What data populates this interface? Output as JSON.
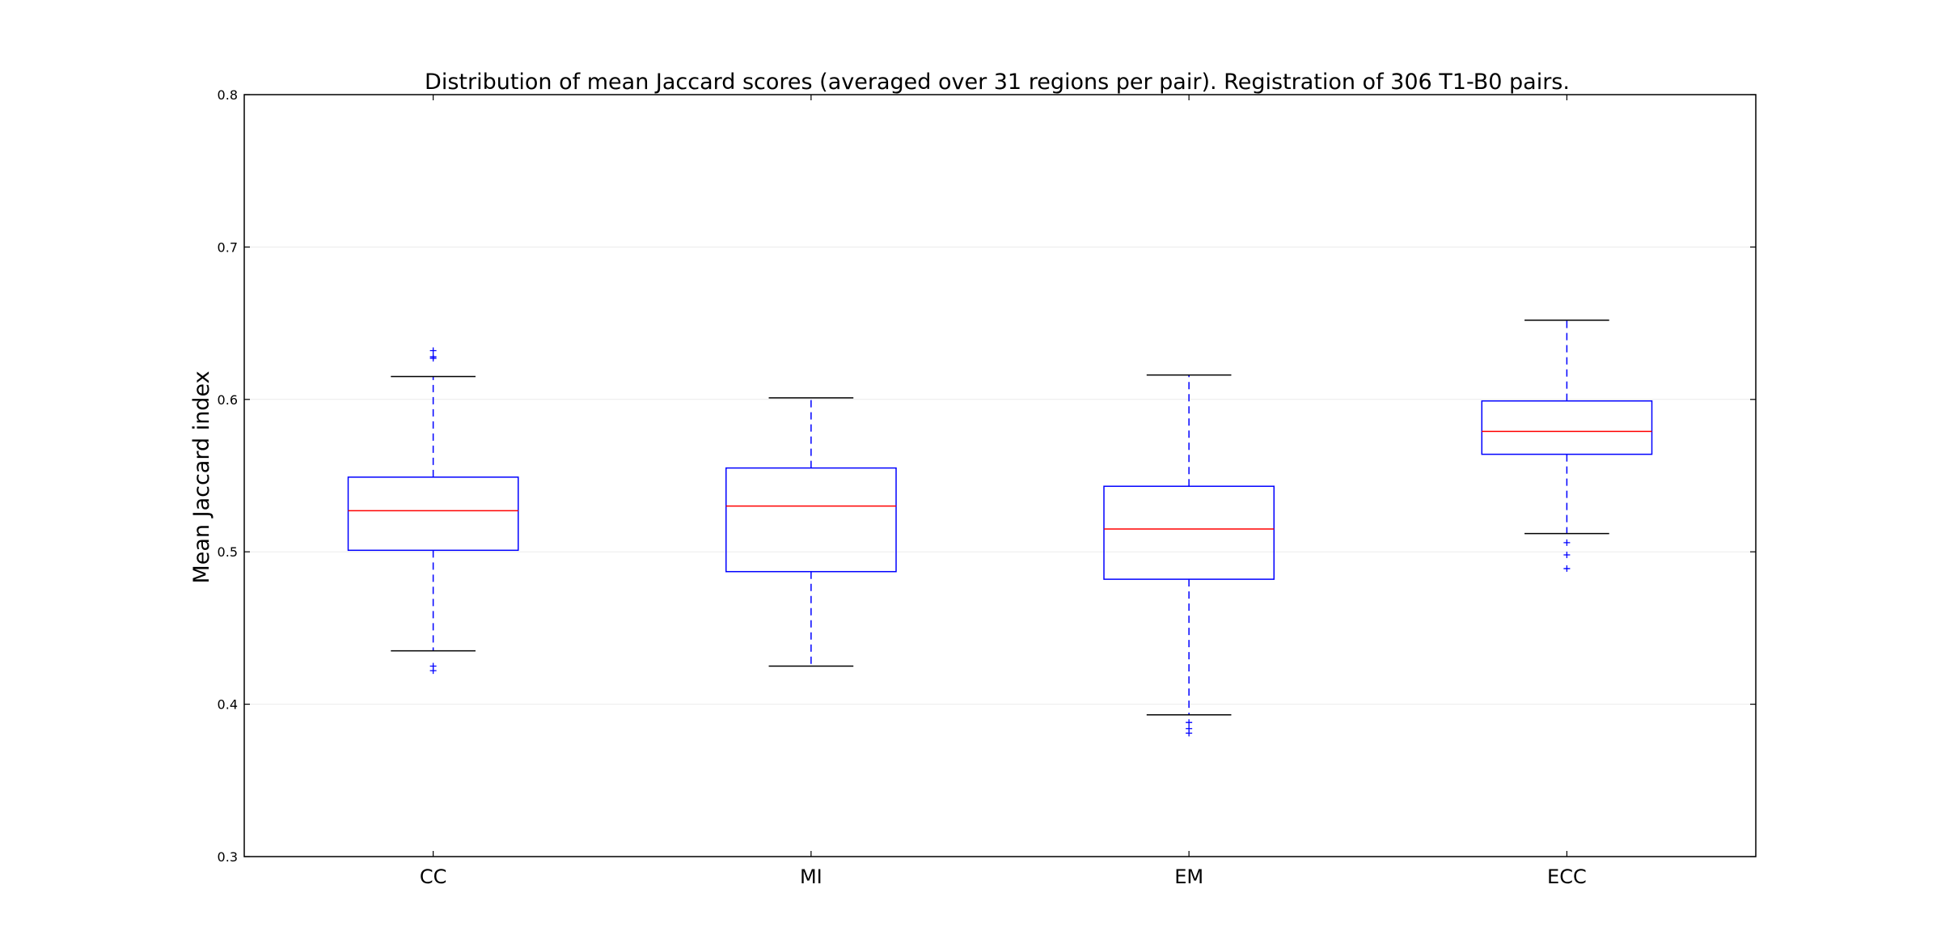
{
  "chart_data": {
    "type": "boxplot",
    "title": "Distribution of mean Jaccard scores (averaged over 31 regions per pair). Registration of 306 T1-B0 pairs.",
    "ylabel": "Mean Jaccard index",
    "xlabel": "",
    "ylim": [
      0.3,
      0.8
    ],
    "yticks": [
      "0.3",
      "0.4",
      "0.5",
      "0.6",
      "0.7",
      "0.8"
    ],
    "grid": true,
    "categories": [
      "CC",
      "MI",
      "EM",
      "ECC"
    ],
    "boxes": [
      {
        "label": "CC",
        "whisker_low": 0.435,
        "q1": 0.501,
        "median": 0.527,
        "q3": 0.549,
        "whisker_high": 0.615,
        "outliers": [
          0.422,
          0.425,
          0.627,
          0.628,
          0.632
        ]
      },
      {
        "label": "MI",
        "whisker_low": 0.425,
        "q1": 0.487,
        "median": 0.53,
        "q3": 0.555,
        "whisker_high": 0.601,
        "outliers": []
      },
      {
        "label": "EM",
        "whisker_low": 0.393,
        "q1": 0.482,
        "median": 0.515,
        "q3": 0.543,
        "whisker_high": 0.616,
        "outliers": [
          0.381,
          0.384,
          0.388
        ]
      },
      {
        "label": "ECC",
        "whisker_low": 0.512,
        "q1": 0.564,
        "median": 0.579,
        "q3": 0.599,
        "whisker_high": 0.652,
        "outliers": [
          0.489,
          0.498,
          0.506
        ]
      }
    ],
    "colors": {
      "box": "#0000ff",
      "median": "#ff0000",
      "whisker": "#0000ff",
      "cap": "#000000",
      "outlier": "#0000ff",
      "grid": "#ebebeb",
      "axes": "#000000"
    }
  }
}
